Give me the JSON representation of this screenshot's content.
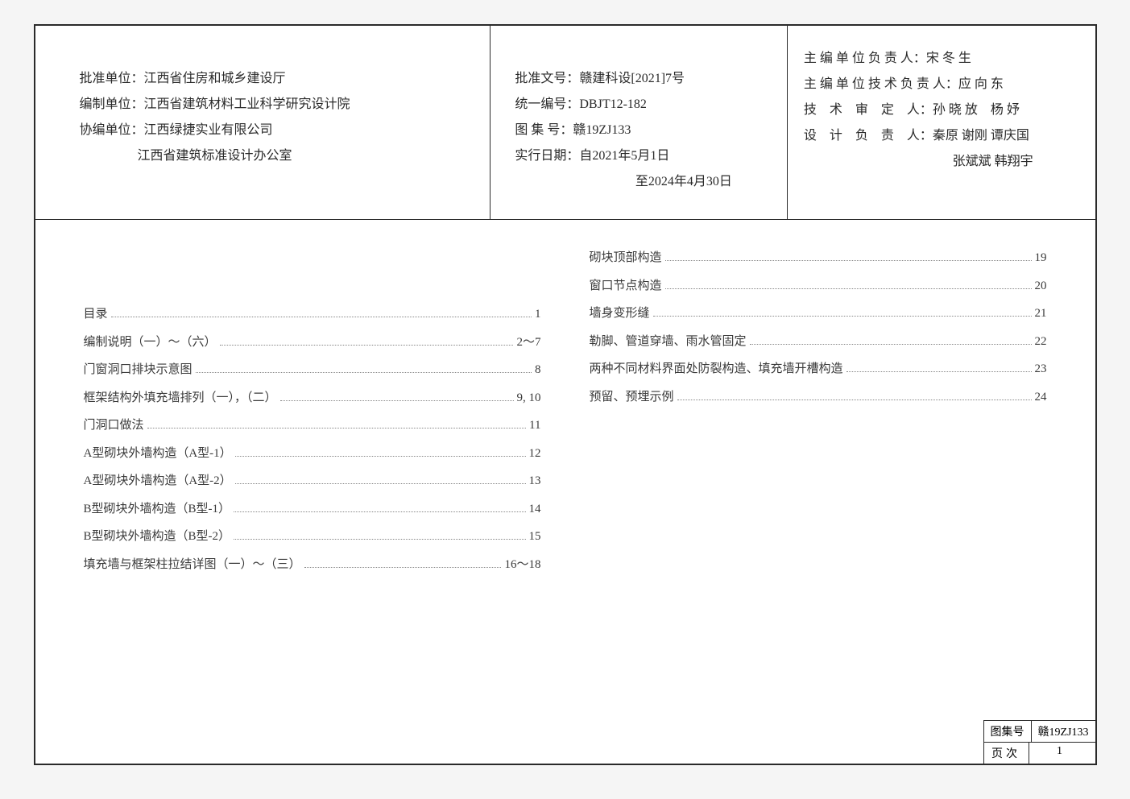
{
  "header": {
    "left": {
      "l1": "批准单位：江西省住房和城乡建设厅",
      "l2": "编制单位：江西省建筑材料工业科学研究设计院",
      "l3": "协编单位：江西绿捷实业有限公司",
      "l4": "江西省建筑标准设计办公室"
    },
    "mid": {
      "m1": "批准文号：赣建科设[2021]7号",
      "m2": "统一编号：DBJT12-182",
      "m3": "图 集 号：赣19ZJ133",
      "m4": "实行日期：自2021年5月1日",
      "m5": "至2024年4月30日"
    },
    "right": {
      "r1": "主 编 单 位 负 责 人：宋 冬 生",
      "r2": "主 编 单 位 技 术 负 责 人：应 向 东",
      "r3": "技　术　审　定　人：孙 晓 放　杨 妤",
      "r4": "设　计　负　责　人：秦原 谢刚 谭庆国",
      "r5": "张斌斌 韩翔宇"
    }
  },
  "toc_left": [
    {
      "title": "目录",
      "page": "1"
    },
    {
      "title": "编制说明（一）～（六）",
      "page": "2～7"
    },
    {
      "title": "门窗洞口排块示意图",
      "page": "8"
    },
    {
      "title": "框架结构外填充墙排列（一），（二）",
      "page": "9, 10"
    },
    {
      "title": "门洞口做法",
      "page": "11"
    },
    {
      "title": "A型砌块外墙构造（A型-1）",
      "page": "12"
    },
    {
      "title": "A型砌块外墙构造（A型-2）",
      "page": "13"
    },
    {
      "title": "B型砌块外墙构造（B型-1）",
      "page": "14"
    },
    {
      "title": "B型砌块外墙构造（B型-2）",
      "page": "15"
    },
    {
      "title": "填充墙与框架柱拉结详图（一）～（三）",
      "page": "16～18"
    }
  ],
  "toc_right": [
    {
      "title": "砌块顶部构造",
      "page": "19"
    },
    {
      "title": "窗口节点构造",
      "page": "20"
    },
    {
      "title": "墙身变形缝",
      "page": "21"
    },
    {
      "title": "勒脚、管道穿墙、雨水管固定",
      "page": "22"
    },
    {
      "title": "两种不同材料界面处防裂构造、填充墙开槽构造",
      "page": "23"
    },
    {
      "title": "预留、预埋示例",
      "page": "24"
    }
  ],
  "stamp": {
    "row1_label": "图集号",
    "row1_val": "赣19ZJ133",
    "row2_label": "页次",
    "row2_val": "1"
  }
}
